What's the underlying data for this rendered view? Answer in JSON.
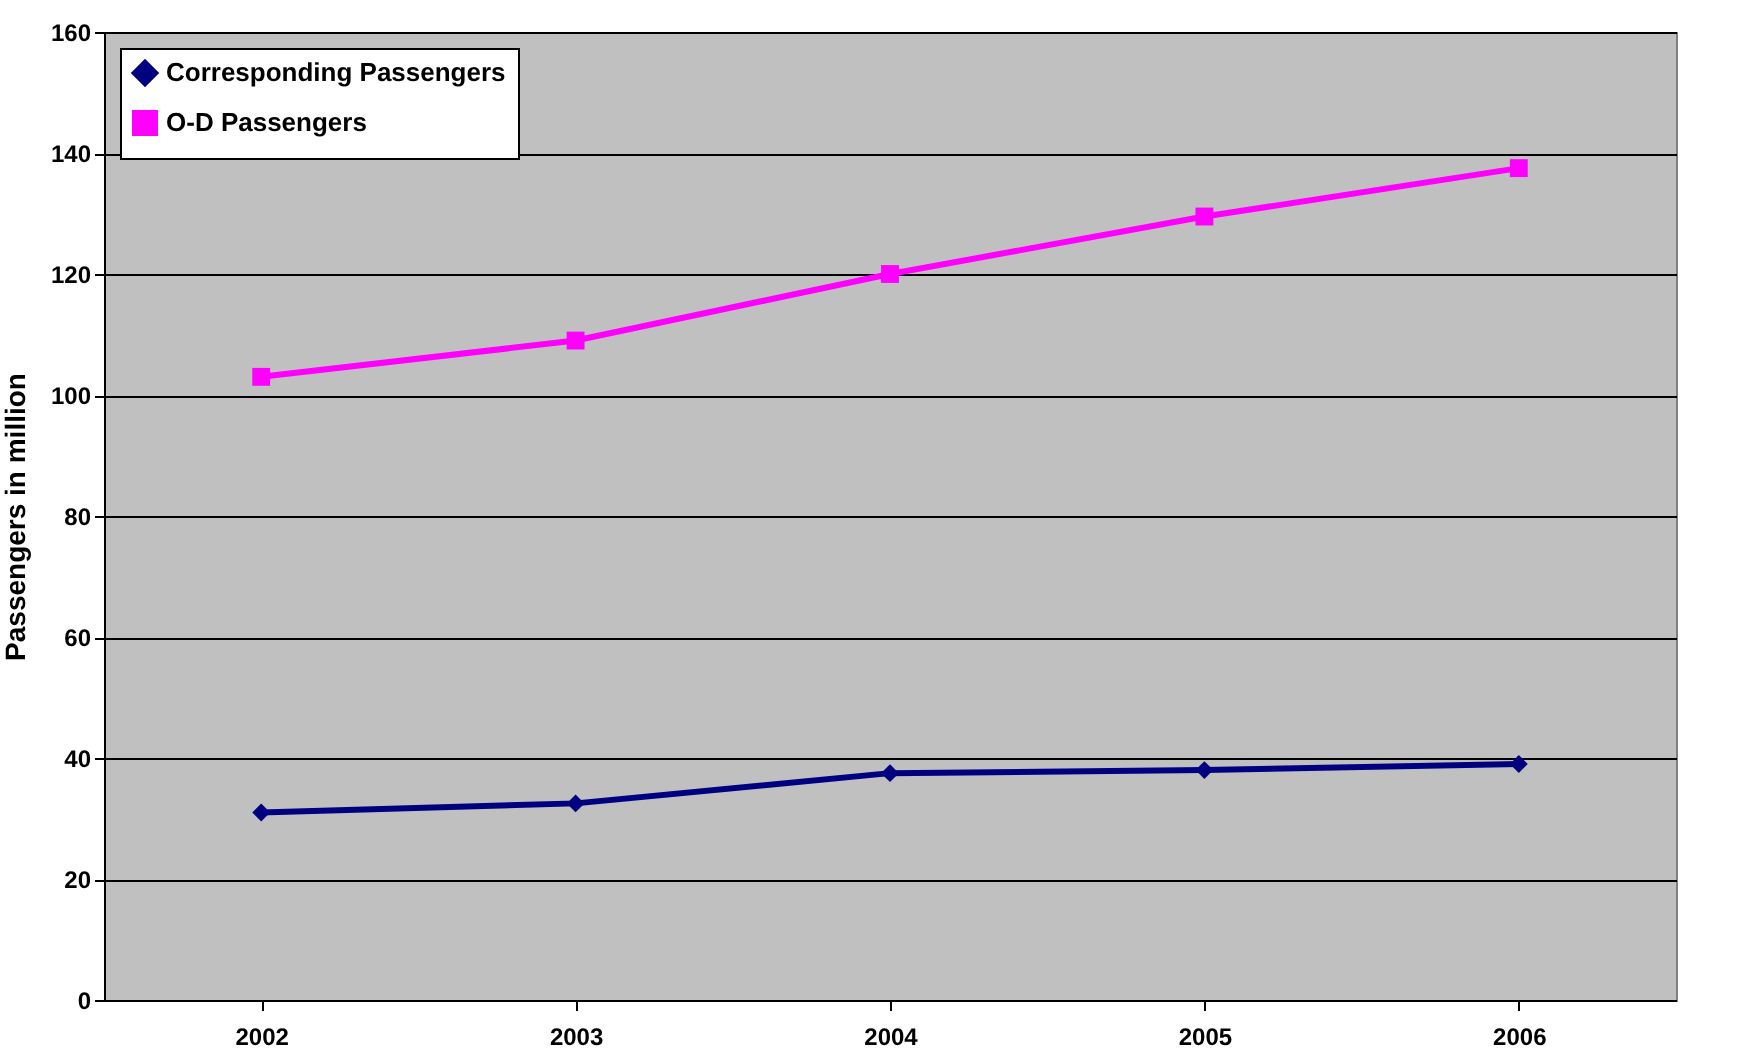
{
  "chart_data": {
    "type": "line",
    "ylabel": "Passengers in million",
    "categories": [
      "2002",
      "2003",
      "2004",
      "2005",
      "2006"
    ],
    "series": [
      {
        "name": "Corresponding Passengers",
        "color": "#000080",
        "marker": "diamond",
        "values": [
          31,
          32.5,
          37.5,
          38,
          39
        ]
      },
      {
        "name": "O-D Passengers",
        "color": "#ff00ff",
        "marker": "square",
        "values": [
          103,
          109,
          120,
          129.5,
          137.5
        ]
      }
    ],
    "ylim": [
      0,
      160
    ],
    "yticks": [
      0,
      20,
      40,
      60,
      80,
      100,
      120,
      140,
      160
    ],
    "grid": "y",
    "legend": "top left"
  }
}
